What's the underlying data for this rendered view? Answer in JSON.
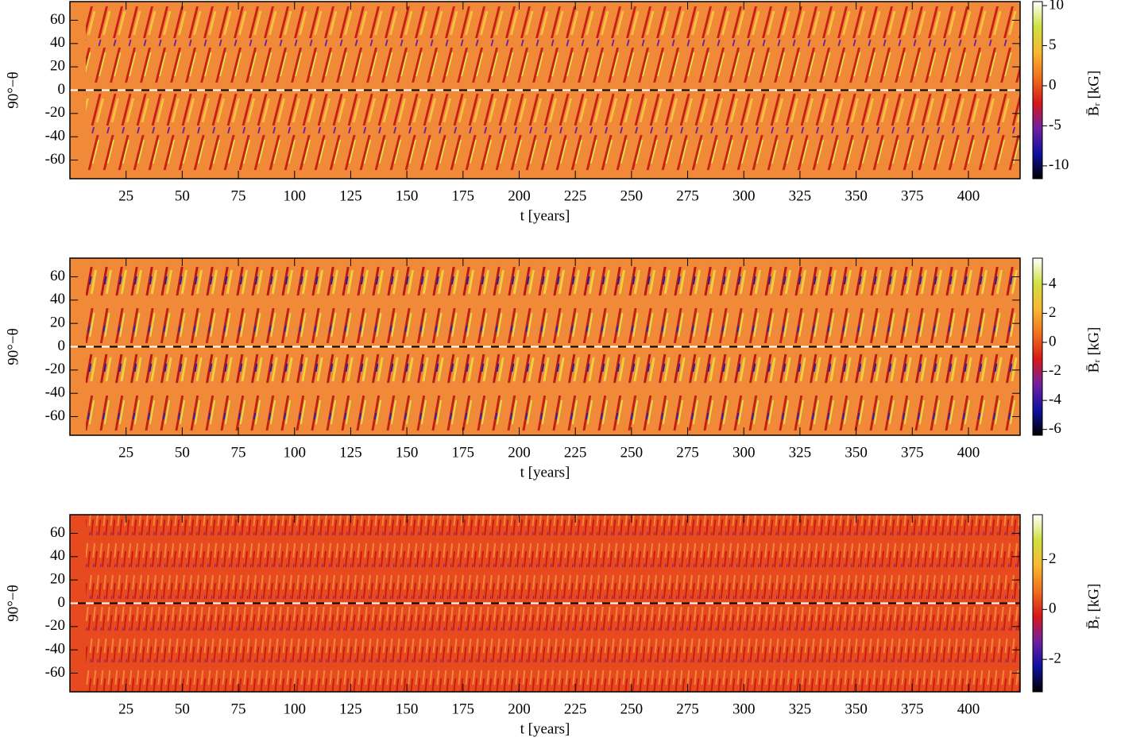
{
  "chart_data": [
    {
      "type": "heatmap",
      "xlabel": "t [years]",
      "ylabel": "90°−θ",
      "colorbar_label": "B̄ᵣ [kG]",
      "xlim": [
        0,
        423
      ],
      "xticks": [
        25,
        50,
        75,
        100,
        125,
        150,
        175,
        200,
        225,
        250,
        275,
        300,
        325,
        350,
        375,
        400
      ],
      "ylim": [
        -76,
        76
      ],
      "yticks": [
        -60,
        -40,
        -20,
        0,
        20,
        40,
        60
      ],
      "zlim": [
        -11.6,
        10.5
      ],
      "zticks": [
        -10,
        -5,
        0,
        5,
        10
      ],
      "colormap": [
        "#000000",
        "#1010a0",
        "#7020a0",
        "#d81818",
        "#f07020",
        "#f8b830",
        "#d0e040",
        "#ffffff"
      ]
    },
    {
      "type": "heatmap",
      "xlabel": "t [years]",
      "ylabel": "90°−θ",
      "colorbar_label": "B̄ᵣ [kG]",
      "xlim": [
        0,
        423
      ],
      "xticks": [
        25,
        50,
        75,
        100,
        125,
        150,
        175,
        200,
        225,
        250,
        275,
        300,
        325,
        350,
        375,
        400
      ],
      "ylim": [
        -76,
        76
      ],
      "yticks": [
        -60,
        -40,
        -20,
        0,
        20,
        40,
        60
      ],
      "zlim": [
        -6.4,
        5.8
      ],
      "zticks": [
        -6,
        -4,
        -2,
        0,
        2,
        4
      ],
      "colormap": [
        "#000000",
        "#1010a0",
        "#7020a0",
        "#d81818",
        "#f07020",
        "#f8b830",
        "#d0e040",
        "#ffffff"
      ]
    },
    {
      "type": "heatmap",
      "xlabel": "t [years]",
      "ylabel": "90°−θ",
      "colorbar_label": "B̄ᵣ [kG]",
      "xlim": [
        0,
        423
      ],
      "xticks": [
        25,
        50,
        75,
        100,
        125,
        150,
        175,
        200,
        225,
        250,
        275,
        300,
        325,
        350,
        375,
        400
      ],
      "ylim": [
        -76,
        76
      ],
      "yticks": [
        -60,
        -40,
        -20,
        0,
        20,
        40,
        60
      ],
      "zlim": [
        -3.3,
        3.8
      ],
      "zticks": [
        -2,
        0,
        2
      ],
      "colormap": [
        "#000000",
        "#1010a0",
        "#7020a0",
        "#d81818",
        "#f07020",
        "#f8b830",
        "#d0e040",
        "#ffffff"
      ]
    }
  ]
}
